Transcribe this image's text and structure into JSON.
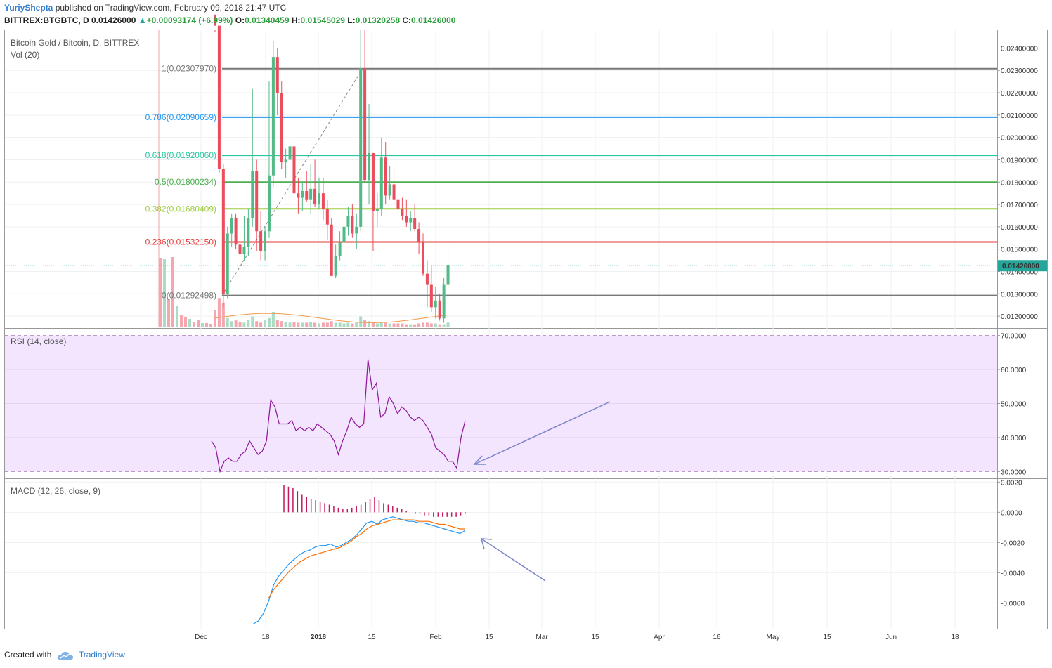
{
  "header": {
    "author": "YuriyShepta",
    "published_text": "published on TradingView.com, February 09, 2018 21:47 UTC",
    "symbol": "BITTREX:BTGBTC, D",
    "last": "0.01426000",
    "change": "+0.00093174 (+6.99%)",
    "o_label": "O:",
    "o_value": "0.01340459",
    "h_label": "H:",
    "h_value": "0.01545029",
    "l_label": "L:",
    "l_value": "0.01320258",
    "c_label": "C:",
    "c_value": "0.01426000"
  },
  "panes": {
    "main_title": "Bitcoin Gold / Bitcoin, D, BITTREX",
    "vol_title": "Vol (20)",
    "rsi_title": "RSI (14, close)",
    "macd_title": "MACD (12, 26, close, 9)"
  },
  "footer": {
    "created_with": "Created with",
    "brand": "TradingView"
  },
  "colors": {
    "up": "#53b987",
    "down": "#eb4d5c",
    "rsi": "#8e1599",
    "rsi_band": "#f3e5fd",
    "macd": "#2196f3",
    "signal": "#ff6d00",
    "hist": "#c2185b",
    "arrow": "#7b83c9"
  },
  "chart_data": [
    {
      "type": "candlestick",
      "title": "Bitcoin Gold / Bitcoin, D, BITTREX",
      "y_range": [
        0.0115,
        0.0248
      ],
      "y_ticks": [
        "0.02400000",
        "0.02300000",
        "0.02200000",
        "0.02100000",
        "0.02000000",
        "0.01900000",
        "0.01800000",
        "0.01700000",
        "0.01600000",
        "0.01500000",
        "0.01400000",
        "0.01300000",
        "0.01200000"
      ],
      "x_ticks": [
        "Dec",
        "18",
        "2018",
        "15",
        "Feb",
        "15",
        "Mar",
        "15",
        "Apr",
        "16",
        "May",
        "15",
        "Jun",
        "18"
      ],
      "last_price_label": "0.01426000",
      "fib_levels": [
        {
          "ratio": "1",
          "price": "0.02307970",
          "value": 0.0230797,
          "color": "#787878"
        },
        {
          "ratio": "0.786",
          "price": "0.02090659",
          "value": 0.02090659,
          "color": "#2196f3"
        },
        {
          "ratio": "0.618",
          "price": "0.01920060",
          "value": 0.0192006,
          "color": "#26c6a0"
        },
        {
          "ratio": "0.5",
          "price": "0.01800234",
          "value": 0.01800234,
          "color": "#4caf50"
        },
        {
          "ratio": "0.382",
          "price": "0.01680409",
          "value": 0.01680409,
          "color": "#9ccc3c"
        },
        {
          "ratio": "0.236",
          "price": "0.01532150",
          "value": 0.0153215,
          "color": "#e53935"
        },
        {
          "ratio": "0",
          "price": "0.01292498",
          "value": 0.01292498,
          "color": "#787878"
        }
      ],
      "candles": [
        [
          0.0255,
          0.0259,
          0.0247,
          0.025
        ],
        [
          0.025,
          0.0253,
          0.0184,
          0.0186
        ],
        [
          0.0186,
          0.0188,
          0.0124,
          0.013
        ],
        [
          0.013,
          0.016,
          0.0128,
          0.0157
        ],
        [
          0.0157,
          0.0166,
          0.0151,
          0.0164
        ],
        [
          0.0164,
          0.0166,
          0.015,
          0.0152
        ],
        [
          0.0152,
          0.016,
          0.0143,
          0.0148
        ],
        [
          0.0148,
          0.0165,
          0.0145,
          0.0151
        ],
        [
          0.0151,
          0.0168,
          0.0147,
          0.0164
        ],
        [
          0.0164,
          0.0222,
          0.016,
          0.0185
        ],
        [
          0.0185,
          0.019,
          0.0149,
          0.0158
        ],
        [
          0.0158,
          0.0167,
          0.0145,
          0.0149
        ],
        [
          0.0149,
          0.016,
          0.0145,
          0.0158
        ],
        [
          0.0158,
          0.0225,
          0.0155,
          0.0183
        ],
        [
          0.0183,
          0.0243,
          0.0178,
          0.0236
        ],
        [
          0.0236,
          0.024,
          0.021,
          0.022
        ],
        [
          0.022,
          0.0225,
          0.0186,
          0.0189
        ],
        [
          0.0189,
          0.0195,
          0.0182,
          0.019
        ],
        [
          0.019,
          0.0198,
          0.0182,
          0.0196
        ],
        [
          0.0196,
          0.0199,
          0.017,
          0.0175
        ],
        [
          0.0175,
          0.0182,
          0.0166,
          0.0173
        ],
        [
          0.0173,
          0.018,
          0.0167,
          0.0176
        ],
        [
          0.0176,
          0.0185,
          0.0171,
          0.0172
        ],
        [
          0.0172,
          0.0188,
          0.0166,
          0.0177
        ],
        [
          0.0177,
          0.019,
          0.0169,
          0.017
        ],
        [
          0.017,
          0.0182,
          0.0168,
          0.0175
        ],
        [
          0.0175,
          0.0182,
          0.0163,
          0.0168
        ],
        [
          0.0168,
          0.0172,
          0.0154,
          0.0161
        ],
        [
          0.0161,
          0.0164,
          0.0138,
          0.0138
        ],
        [
          0.0138,
          0.0152,
          0.0137,
          0.0147
        ],
        [
          0.0147,
          0.0158,
          0.0145,
          0.0153
        ],
        [
          0.0153,
          0.0162,
          0.015,
          0.016
        ],
        [
          0.016,
          0.0169,
          0.0156,
          0.0165
        ],
        [
          0.0165,
          0.017,
          0.0155,
          0.0157
        ],
        [
          0.0157,
          0.0166,
          0.015,
          0.016
        ],
        [
          0.016,
          0.0248,
          0.0158,
          0.0231
        ],
        [
          0.0231,
          0.0248,
          0.018,
          0.0181
        ],
        [
          0.0181,
          0.0215,
          0.017,
          0.0193
        ],
        [
          0.0193,
          0.0193,
          0.0149,
          0.0167
        ],
        [
          0.0167,
          0.0175,
          0.016,
          0.0168
        ],
        [
          0.0168,
          0.02,
          0.0165,
          0.0191
        ],
        [
          0.0191,
          0.0198,
          0.017,
          0.0174
        ],
        [
          0.0174,
          0.0187,
          0.0172,
          0.0179
        ],
        [
          0.0179,
          0.0186,
          0.017,
          0.0172
        ],
        [
          0.0172,
          0.0177,
          0.0165,
          0.0168
        ],
        [
          0.0168,
          0.0173,
          0.0163,
          0.0165
        ],
        [
          0.0165,
          0.0172,
          0.016,
          0.0162
        ],
        [
          0.0162,
          0.0167,
          0.0158,
          0.0164
        ],
        [
          0.0164,
          0.017,
          0.0158,
          0.0159
        ],
        [
          0.0159,
          0.0162,
          0.0148,
          0.0153
        ],
        [
          0.0153,
          0.0157,
          0.0138,
          0.0139
        ],
        [
          0.0139,
          0.0145,
          0.0124,
          0.0134
        ],
        [
          0.0134,
          0.0143,
          0.0122,
          0.0124
        ],
        [
          0.0124,
          0.0133,
          0.0119,
          0.0127
        ],
        [
          0.0127,
          0.013,
          0.0118,
          0.0119
        ],
        [
          0.0119,
          0.0137,
          0.0117,
          0.0134
        ],
        [
          0.0134,
          0.0154,
          0.0132,
          0.0143
        ]
      ],
      "volume": [
        22,
        38,
        32,
        12,
        8,
        9,
        7,
        6,
        10,
        14,
        8,
        6,
        9,
        12,
        20,
        10,
        8,
        7,
        6,
        7,
        6,
        6,
        6,
        7,
        6,
        5,
        6,
        6,
        8,
        6,
        6,
        5,
        6,
        5,
        6,
        14,
        10,
        8,
        6,
        5,
        7,
        6,
        5,
        5,
        5,
        5,
        4,
        4,
        4,
        5,
        6,
        6,
        5,
        5,
        4,
        4,
        6
      ]
    },
    {
      "type": "line",
      "title": "RSI (14, close)",
      "y_range": [
        28,
        72
      ],
      "y_ticks": [
        "70.0000",
        "60.0000",
        "50.0000",
        "40.0000",
        "30.0000"
      ],
      "band": [
        30,
        70
      ],
      "values": [
        39,
        37,
        30,
        33,
        34,
        33,
        33,
        35,
        36,
        39,
        37,
        35,
        36,
        39,
        51,
        49,
        44,
        44,
        44,
        45,
        42,
        43,
        42,
        43,
        42,
        44,
        43,
        42,
        41,
        39,
        35,
        39,
        42,
        46,
        44,
        43,
        44,
        63,
        54,
        56,
        46,
        47,
        52,
        50,
        47,
        49,
        48,
        46,
        45,
        46,
        45,
        43,
        41,
        37,
        36,
        35,
        33,
        33,
        31,
        40,
        45
      ]
    },
    {
      "type": "line",
      "title": "MACD (12, 26, close, 9)",
      "y_range": [
        -0.0077,
        0.0022
      ],
      "y_ticks": [
        "0.0020",
        "0.0000",
        "-0.0020",
        "-0.0040",
        "-0.0060"
      ],
      "series": [
        {
          "name": "",
          "values": [
            -0.0074,
            -0.0072,
            -0.0067,
            -0.0059,
            -0.0048,
            -0.0042,
            -0.0038,
            -0.0034,
            -0.0031,
            -0.0028,
            -0.0026,
            -0.0025,
            -0.0023,
            -0.0022,
            -0.0022,
            -0.0021,
            -0.0023,
            -0.0022,
            -0.002,
            -0.0018,
            -0.0015,
            -0.0011,
            -0.0007,
            -0.0006,
            -0.0008,
            -0.0005,
            -0.0004,
            -0.0003,
            -0.0004,
            -0.0005,
            -0.0006,
            -0.0006,
            -0.0007,
            -0.0007,
            -0.0008,
            -0.0009,
            -0.001,
            -0.0011,
            -0.0012,
            -0.0013,
            -0.0014,
            -0.0012
          ]
        },
        {
          "name": "",
          "values": [
            null,
            null,
            null,
            -0.0057,
            -0.0051,
            -0.0047,
            -0.0043,
            -0.0039,
            -0.0036,
            -0.0033,
            -0.0031,
            -0.0029,
            -0.0028,
            -0.0027,
            -0.0026,
            -0.0025,
            -0.0024,
            -0.0023,
            -0.0021,
            -0.0019,
            -0.0016,
            -0.0014,
            -0.0011,
            -0.0009,
            -0.0008,
            -0.0007,
            -0.0006,
            -0.0005,
            -0.0005,
            -0.0005,
            -0.0005,
            -0.0005,
            -0.0006,
            -0.0006,
            -0.0006,
            -0.0007,
            -0.0008,
            -0.0008,
            -0.0009,
            -0.001,
            -0.0011,
            -0.0011
          ]
        }
      ],
      "histogram": [
        0.0018,
        0.0017,
        0.0016,
        0.0014,
        0.0012,
        0.001,
        0.0009,
        0.0008,
        0.0007,
        0.0006,
        0.0005,
        0.0004,
        0.0003,
        0.0002,
        0.0002,
        0.0003,
        0.0004,
        0.0005,
        0.0007,
        0.0009,
        0.001,
        0.0008,
        0.0006,
        0.0005,
        0.0004,
        0.0003,
        0.0002,
        0.0001,
        0.0,
        -0.0001,
        -0.0001,
        -0.0002,
        -0.0002,
        -0.0003,
        -0.0003,
        -0.0003,
        -0.0003,
        -0.0003,
        -0.0003,
        -0.0002,
        -0.0001
      ]
    }
  ]
}
